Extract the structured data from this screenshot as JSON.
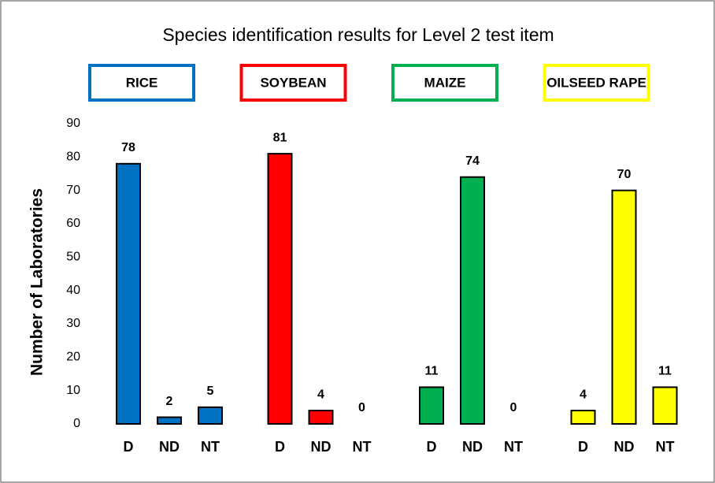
{
  "chart_data": {
    "type": "bar",
    "title": "Species identification results for Level 2 test item",
    "y_label": "Number of Laboratories",
    "categories": [
      "D",
      "ND",
      "NT"
    ],
    "series": [
      {
        "name": "RICE",
        "color": "#0070c0",
        "values": [
          78,
          2,
          5
        ]
      },
      {
        "name": "SOYBEAN",
        "color": "#ff0000",
        "values": [
          81,
          4,
          0
        ]
      },
      {
        "name": "MAIZE",
        "color": "#00b050",
        "values": [
          11,
          74,
          0
        ]
      },
      {
        "name": "OILSEED RAPE",
        "color": "#ffff00",
        "values": [
          4,
          70,
          11
        ]
      }
    ],
    "ylim": [
      0,
      90
    ],
    "yticks": [
      0,
      10,
      20,
      30,
      40,
      50,
      60,
      70,
      80,
      90
    ],
    "grid": false
  }
}
